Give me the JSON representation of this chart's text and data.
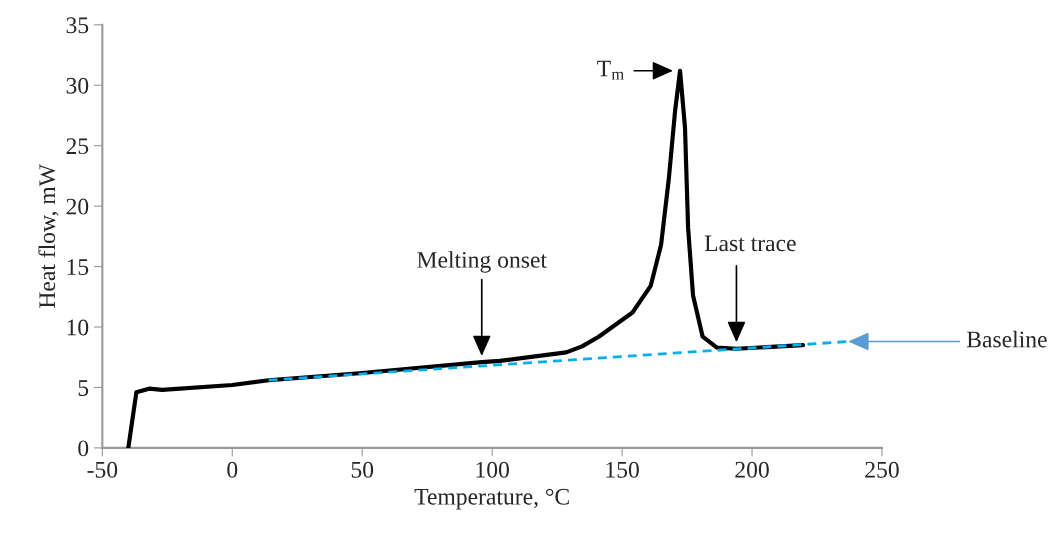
{
  "chart_data": {
    "type": "line",
    "xlabel": "Temperature, °C",
    "ylabel": "Heat flow, mW",
    "xlim": [
      -50,
      250
    ],
    "ylim": [
      0,
      35
    ],
    "xticks": [
      -50,
      0,
      50,
      100,
      150,
      200,
      250
    ],
    "yticks": [
      0,
      5,
      10,
      15,
      20,
      25,
      30,
      35
    ],
    "grid": false,
    "marker": "none",
    "series": [
      {
        "color": "#000000",
        "line_style": "solid",
        "x": [
          -40,
          -36.9,
          -32,
          -27,
          0,
          14,
          50,
          96,
          103,
          128.5,
          134.6,
          141,
          154,
          161,
          165,
          168,
          170.4,
          172.3,
          174.2,
          175.4,
          177.3,
          181,
          186.5,
          194,
          219.6
        ],
        "values": [
          0,
          4.6,
          4.9,
          4.8,
          5.2,
          5.6,
          6.2,
          7.1,
          7.2,
          7.9,
          8.4,
          9.2,
          11.2,
          13.4,
          16.8,
          22.3,
          27.9,
          31.2,
          26.5,
          18.2,
          12.6,
          9.2,
          8.3,
          8.2,
          8.5
        ]
      },
      {
        "color": "#00b0f0",
        "line_style": "dashed",
        "x": [
          14,
          237
        ],
        "values": [
          5.6,
          8.8
        ]
      }
    ],
    "annotations": [
      {
        "text": "T$_{m}$",
        "x": 172.3,
        "y": 31.2
      },
      {
        "text": "Melting onset",
        "x": 96,
        "y": 7.6
      },
      {
        "text": "Last trace",
        "x": 194,
        "y": 8.75
      },
      {
        "text": "Baseline",
        "x": 237,
        "y": 8.8
      }
    ]
  }
}
